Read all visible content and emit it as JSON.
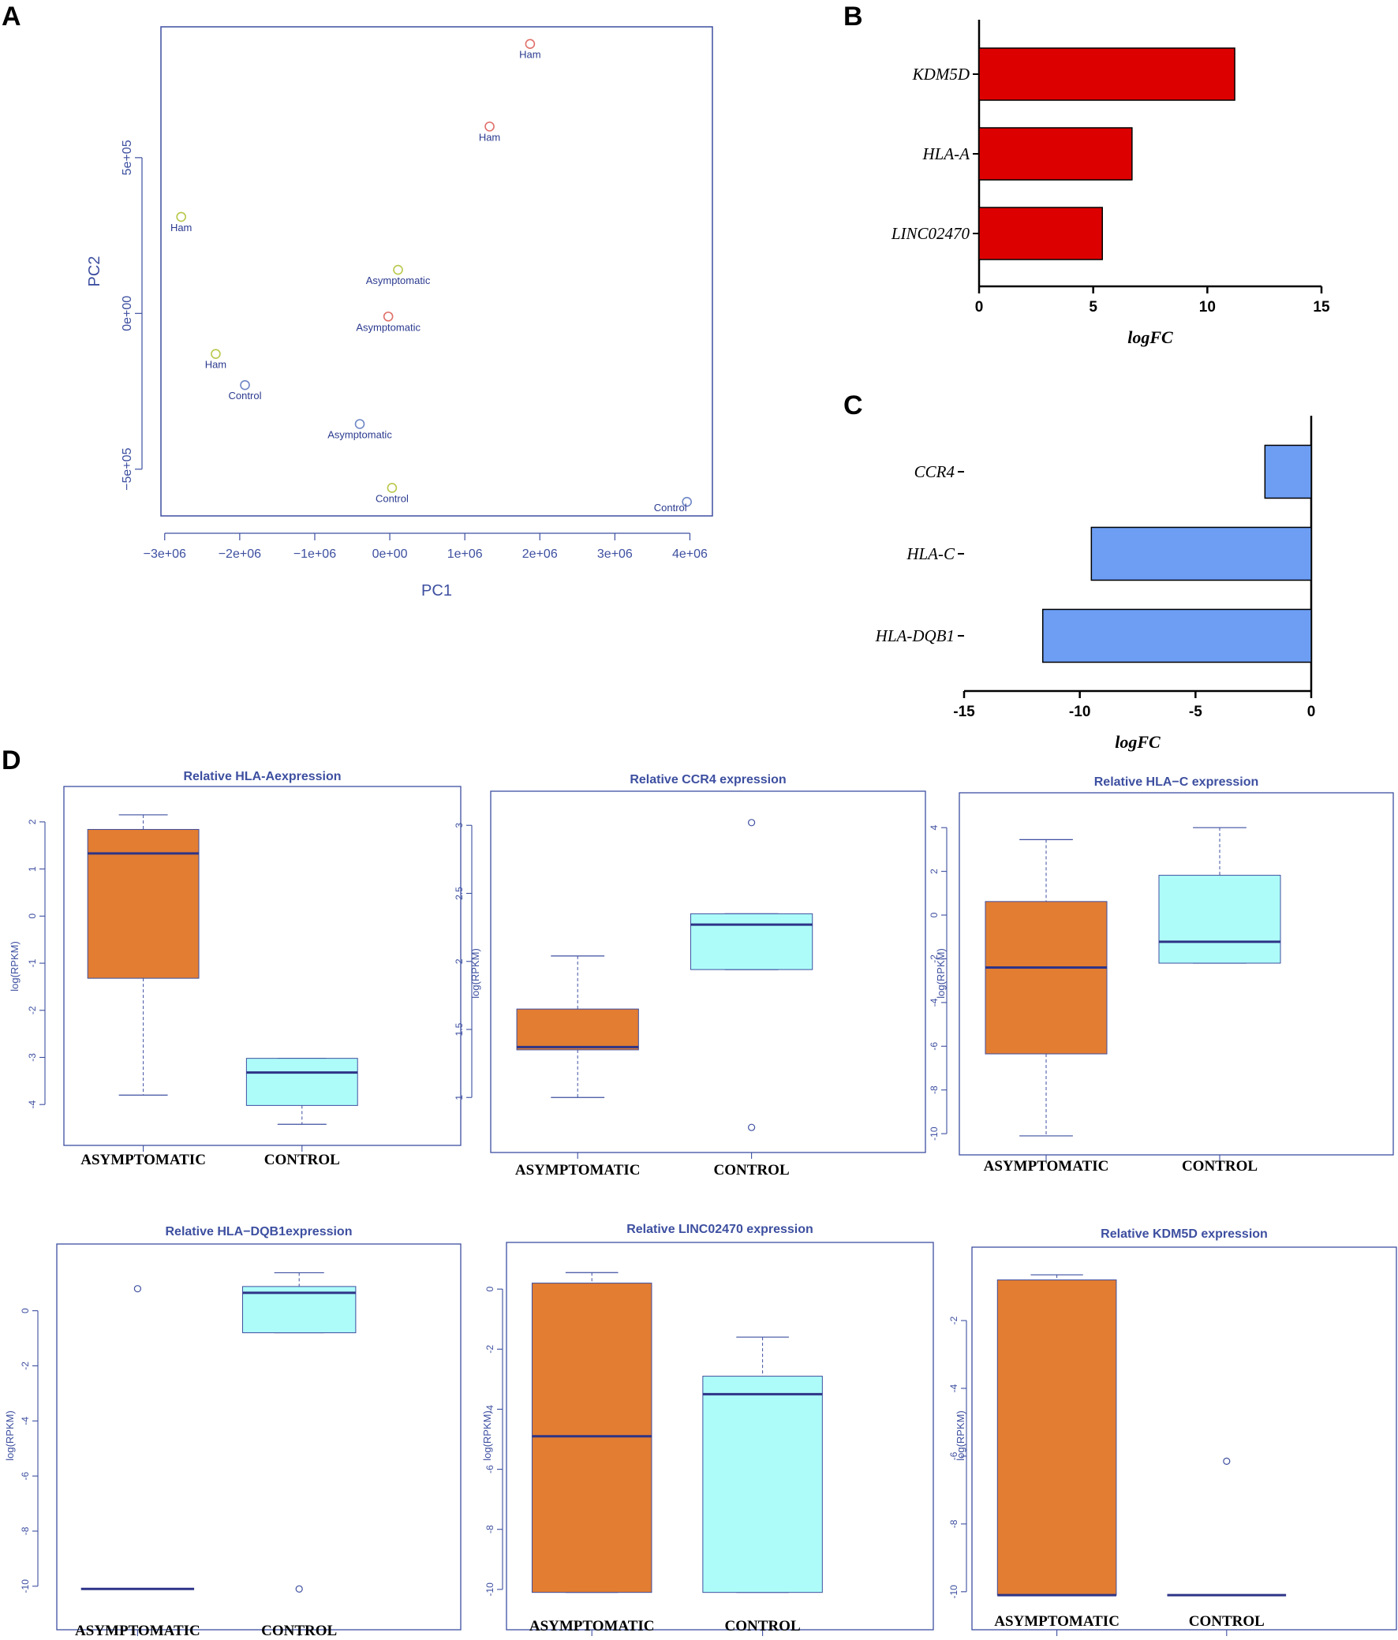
{
  "panels": {
    "A": "A",
    "B": "B",
    "C": "C",
    "D": "D"
  },
  "chart_data": [
    {
      "id": "A",
      "type": "scatter",
      "xlabel": "PC1",
      "ylabel": "PC2",
      "xlim": [
        -3050000,
        4300000
      ],
      "ylim": [
        -650000,
        920000
      ],
      "xticks": [
        -3000000,
        -2000000,
        -1000000,
        0,
        1000000,
        2000000,
        3000000,
        4000000
      ],
      "xtick_labels": [
        "−3e+06",
        "−2e+06",
        "−1e+06",
        "0e+00",
        "1e+06",
        "2e+06",
        "3e+06",
        "4e+06"
      ],
      "yticks": [
        -500000,
        0,
        500000
      ],
      "ytick_labels": [
        "−5e+05",
        "0e+00",
        "5e+05"
      ],
      "points": [
        {
          "x": 1870000,
          "y": 865000,
          "label": "Ham",
          "color": "#e0706a",
          "anchor": "middle",
          "dy": 18
        },
        {
          "x": 1330000,
          "y": 600000,
          "label": "Ham",
          "color": "#e0706a",
          "anchor": "middle",
          "dy": 18
        },
        {
          "x": -2780000,
          "y": 310000,
          "label": "Ham",
          "color": "#b9c84a",
          "anchor": "middle",
          "dy": 18
        },
        {
          "x": 110000,
          "y": 140000,
          "label": "Asymptomatic",
          "color": "#b9c84a",
          "anchor": "middle",
          "dy": 18
        },
        {
          "x": -20000,
          "y": -10000,
          "label": "Asymptomatic",
          "color": "#e0706a",
          "anchor": "middle",
          "dy": 18
        },
        {
          "x": -2320000,
          "y": -130000,
          "label": "Ham",
          "color": "#b9c84a",
          "anchor": "middle",
          "dy": 18
        },
        {
          "x": -1930000,
          "y": -230000,
          "label": "Control",
          "color": "#6f86c6",
          "anchor": "middle",
          "dy": 18
        },
        {
          "x": -400000,
          "y": -355000,
          "label": "Asymptomatic",
          "color": "#6f86c6",
          "anchor": "middle",
          "dy": 18
        },
        {
          "x": 30000,
          "y": -560000,
          "label": "Control",
          "color": "#b9c84a",
          "anchor": "middle",
          "dy": 18
        },
        {
          "x": 3960000,
          "y": -605000,
          "label": "Control",
          "color": "#6f86c6",
          "anchor": "end",
          "dy": 12
        }
      ]
    },
    {
      "id": "B",
      "type": "bar",
      "orientation": "horizontal",
      "categories": [
        "KDM5D",
        "HLA-A",
        "LINC02470"
      ],
      "values": [
        11.2,
        6.7,
        5.4
      ],
      "color": "#dd0000",
      "xlabel": "logFC",
      "xlim": [
        0,
        15
      ],
      "xticks": [
        0,
        5,
        10,
        15
      ]
    },
    {
      "id": "C",
      "type": "bar",
      "orientation": "horizontal",
      "categories": [
        "CCR4",
        "HLA-C",
        "HLA-DQB1"
      ],
      "values": [
        -2.0,
        -9.5,
        -11.6
      ],
      "color": "#6d9ef4",
      "xlabel": "logFC",
      "xlim": [
        -15,
        0
      ],
      "xticks": [
        -15,
        -10,
        -5,
        0
      ]
    },
    {
      "id": "D1",
      "type": "box",
      "title": "Relative HLA-Aexpression",
      "ylabel": "log(RPKM)",
      "categories": [
        "ASYMPTOMATIC",
        "CONTROL"
      ],
      "ylim": [
        -4.65,
        2.35
      ],
      "yticks": [
        -4,
        -3,
        -2,
        -1,
        0,
        1,
        2
      ],
      "boxes": [
        {
          "min": -3.8,
          "q1": -1.32,
          "median": 1.33,
          "q3": 1.84,
          "max": 2.15,
          "outliers": []
        },
        {
          "min": -4.42,
          "q1": -4.02,
          "median": -3.32,
          "q3": -3.02,
          "max": -3.02,
          "outliers": []
        }
      ]
    },
    {
      "id": "D2",
      "type": "box",
      "title": "Relative CCR4 expression",
      "ylabel": "log(RPKM)",
      "categories": [
        "ASYMPTOMATIC",
        "CONTROL"
      ],
      "ylim": [
        0.7,
        3.1
      ],
      "yticks": [
        1.0,
        1.5,
        2.0,
        2.5,
        3.0
      ],
      "boxes": [
        {
          "min": 1.0,
          "q1": 1.35,
          "median": 1.37,
          "q3": 1.65,
          "max": 2.04,
          "outliers": []
        },
        {
          "min": 1.94,
          "q1": 1.94,
          "median": 2.27,
          "q3": 2.35,
          "max": 2.35,
          "outliers": [
            3.02,
            0.78
          ]
        }
      ]
    },
    {
      "id": "D3",
      "type": "box",
      "title": "Relative HLA−C expression",
      "ylabel": "log(RPKM)",
      "categories": [
        "ASYMPTOMATIC",
        "CONTROL"
      ],
      "ylim": [
        -10.5,
        4.8
      ],
      "yticks": [
        -10,
        -8,
        -6,
        -4,
        -2,
        0,
        2,
        4
      ],
      "boxes": [
        {
          "min": -10.1,
          "q1": -6.35,
          "median": -2.4,
          "q3": 0.62,
          "max": 3.45,
          "outliers": []
        },
        {
          "min": -2.2,
          "q1": -2.2,
          "median": -1.22,
          "q3": 1.82,
          "max": 4.0,
          "outliers": []
        }
      ]
    },
    {
      "id": "D4",
      "type": "box",
      "title": "Relative HLA−DQB1expression",
      "ylabel": "log(RPKM)",
      "categories": [
        "ASYMPTOMATIC",
        "CONTROL"
      ],
      "ylim": [
        -10.75,
        1.85
      ],
      "yticks": [
        -10,
        -8,
        -6,
        -4,
        -2,
        0
      ],
      "boxes": [
        {
          "min": -10.1,
          "q1": -10.1,
          "median": -10.1,
          "q3": -10.1,
          "max": -10.1,
          "outliers": [
            0.8
          ]
        },
        {
          "min": -0.8,
          "q1": -0.8,
          "median": 0.65,
          "q3": 0.88,
          "max": 1.38,
          "outliers": [
            -10.1
          ]
        }
      ]
    },
    {
      "id": "D5",
      "type": "box",
      "title": "Relative LINC02470 expression",
      "ylabel": "log(RPKM)",
      "categories": [
        "ASYMPTOMATIC",
        "CONTROL"
      ],
      "ylim": [
        -10.45,
        0.95
      ],
      "yticks": [
        -10,
        -8,
        -6,
        -4,
        -2,
        0
      ],
      "boxes": [
        {
          "min": -10.1,
          "q1": -10.1,
          "median": -4.9,
          "q3": 0.2,
          "max": 0.55,
          "outliers": []
        },
        {
          "min": -10.1,
          "q1": -10.1,
          "median": -3.5,
          "q3": -2.9,
          "max": -1.6,
          "outliers": []
        }
      ]
    },
    {
      "id": "D6",
      "type": "box",
      "title": "Relative KDM5D expression",
      "ylabel": "log(RPKM)",
      "categories": [
        "ASYMPTOMATIC",
        "CONTROL"
      ],
      "ylim": [
        -10.4,
        -0.3
      ],
      "yticks": [
        -10,
        -8,
        -6,
        -4,
        -2
      ],
      "boxes": [
        {
          "min": -10.1,
          "q1": -10.1,
          "median": -10.1,
          "q3": -0.8,
          "max": -0.65,
          "outliers": []
        },
        {
          "min": -10.1,
          "q1": -10.1,
          "median": -10.1,
          "q3": -10.1,
          "max": -10.1,
          "outliers": [
            -6.15
          ]
        }
      ]
    }
  ],
  "colors": {
    "axis_blue": "#3d4fa0",
    "asymptomatic_box": "#e27d32",
    "control_box": "#aefcf9",
    "median_line": "#2e3487",
    "bar_axis": "#000000"
  }
}
